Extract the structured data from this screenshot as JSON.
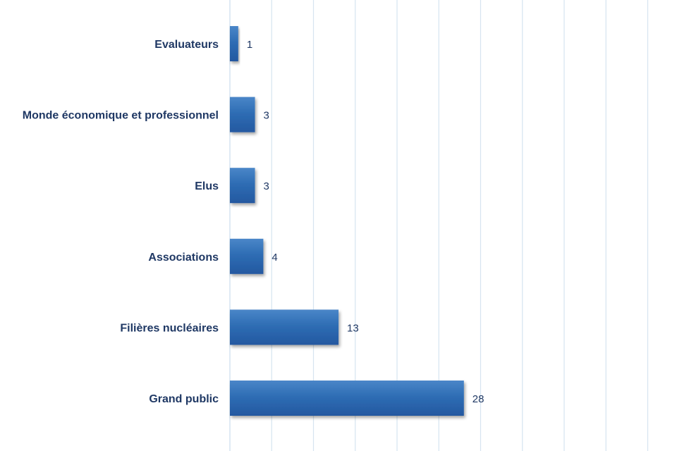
{
  "colors": {
    "bar": "#2E6DB4",
    "bar_dark": "#2458A0",
    "bar_light": "#4A86C8",
    "grid": "#D6E4F0",
    "axis": "#1F3864",
    "text": "#1F3864"
  },
  "chart_data": {
    "type": "bar",
    "orientation": "horizontal",
    "categories": [
      "Evaluateurs",
      "Monde économique et professionnel",
      "Elus",
      "Associations",
      "Filières nucléaires",
      "Grand public"
    ],
    "values": [
      1,
      3,
      3,
      4,
      13,
      28
    ],
    "data_labels": [
      "1",
      "3",
      "3",
      "4",
      "13",
      "28"
    ],
    "title": "",
    "xlabel": "",
    "ylabel": "",
    "xlim": [
      0,
      52
    ],
    "x_grid_step": 5,
    "grid": true,
    "legend": "none"
  }
}
